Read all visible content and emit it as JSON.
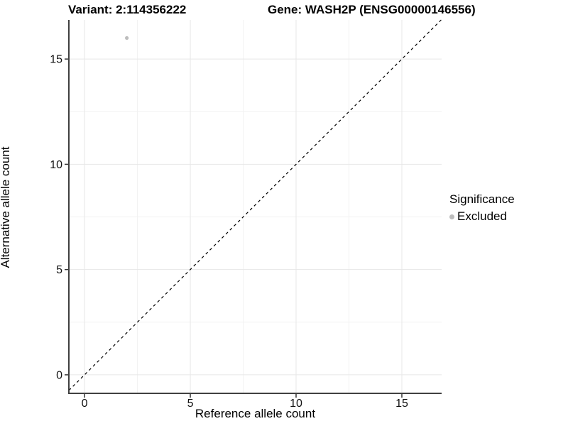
{
  "title": {
    "variant": "Variant: 2:114356222",
    "gene": "Gene: WASH2P (ENSG00000146556)"
  },
  "axes": {
    "x": {
      "label": "Reference allele count"
    },
    "y": {
      "label": "Alternative allele count"
    }
  },
  "legend": {
    "title": "Significance",
    "items": [
      {
        "label": "Excluded",
        "color": "#bdbdbd"
      }
    ]
  },
  "colors": {
    "point": "#bdbdbd",
    "axis_line": "#404040",
    "tick_mark": "#333333",
    "grid_major": "#e7e7e7",
    "grid_minor": "#f2f2f2",
    "reference_line": "#000000",
    "text": "#000000"
  },
  "chart_data": {
    "type": "scatter",
    "title": "Variant: 2:114356222 | Gene: WASH2P (ENSG00000146556)",
    "xlabel": "Reference allele count",
    "ylabel": "Alternative allele count",
    "xlim": [
      -0.74,
      16.88
    ],
    "ylim": [
      -0.88,
      16.86
    ],
    "x_ticks": [
      0,
      5,
      10,
      15
    ],
    "y_ticks": [
      0,
      5,
      10,
      15
    ],
    "x_minor_ticks": [
      2.5,
      7.5,
      12.5
    ],
    "y_minor_ticks": [
      2.5,
      7.5,
      12.5
    ],
    "grid": "major and minor gridlines, very light gray, white background",
    "legend_position": "right-center",
    "series": [
      {
        "name": "Excluded",
        "marker": "circle",
        "color": "#bdbdbd",
        "size": 2.6,
        "points": [
          {
            "x": 2,
            "y": 16
          }
        ]
      }
    ],
    "reference_line": {
      "equation": "y = x",
      "style": "dashed",
      "color": "#000000"
    }
  }
}
